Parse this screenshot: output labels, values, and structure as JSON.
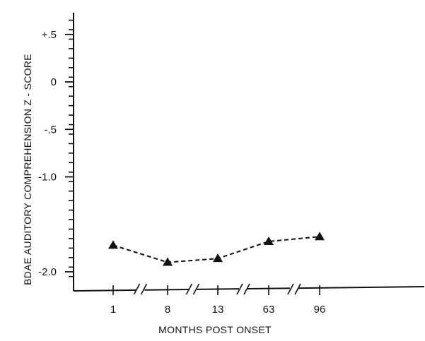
{
  "chart_data": {
    "type": "line",
    "title": "",
    "xlabel": "MONTHS POST ONSET",
    "ylabel": "BDAE AUDITORY COMPREHENSION Z - SCORE",
    "categories": [
      "1",
      "8",
      "13",
      "63",
      "96"
    ],
    "y_ticks": [
      {
        "value": 0.5,
        "label": "+.5"
      },
      {
        "value": 0,
        "label": "0"
      },
      {
        "value": -0.5,
        "label": "-.5"
      },
      {
        "value": -1.0,
        "label": "-1.0"
      },
      {
        "value": -2.0,
        "label": "-2.0"
      }
    ],
    "ylim": [
      -2.1,
      0.65
    ],
    "minor_tick_step": 0.1,
    "axis_breaks": "between each x category",
    "series": [
      {
        "values": [
          -1.72,
          -1.9,
          -1.86,
          -1.68,
          -1.63
        ],
        "marker": "triangle",
        "line": "dashed"
      }
    ],
    "grid": false,
    "legend": "none"
  }
}
